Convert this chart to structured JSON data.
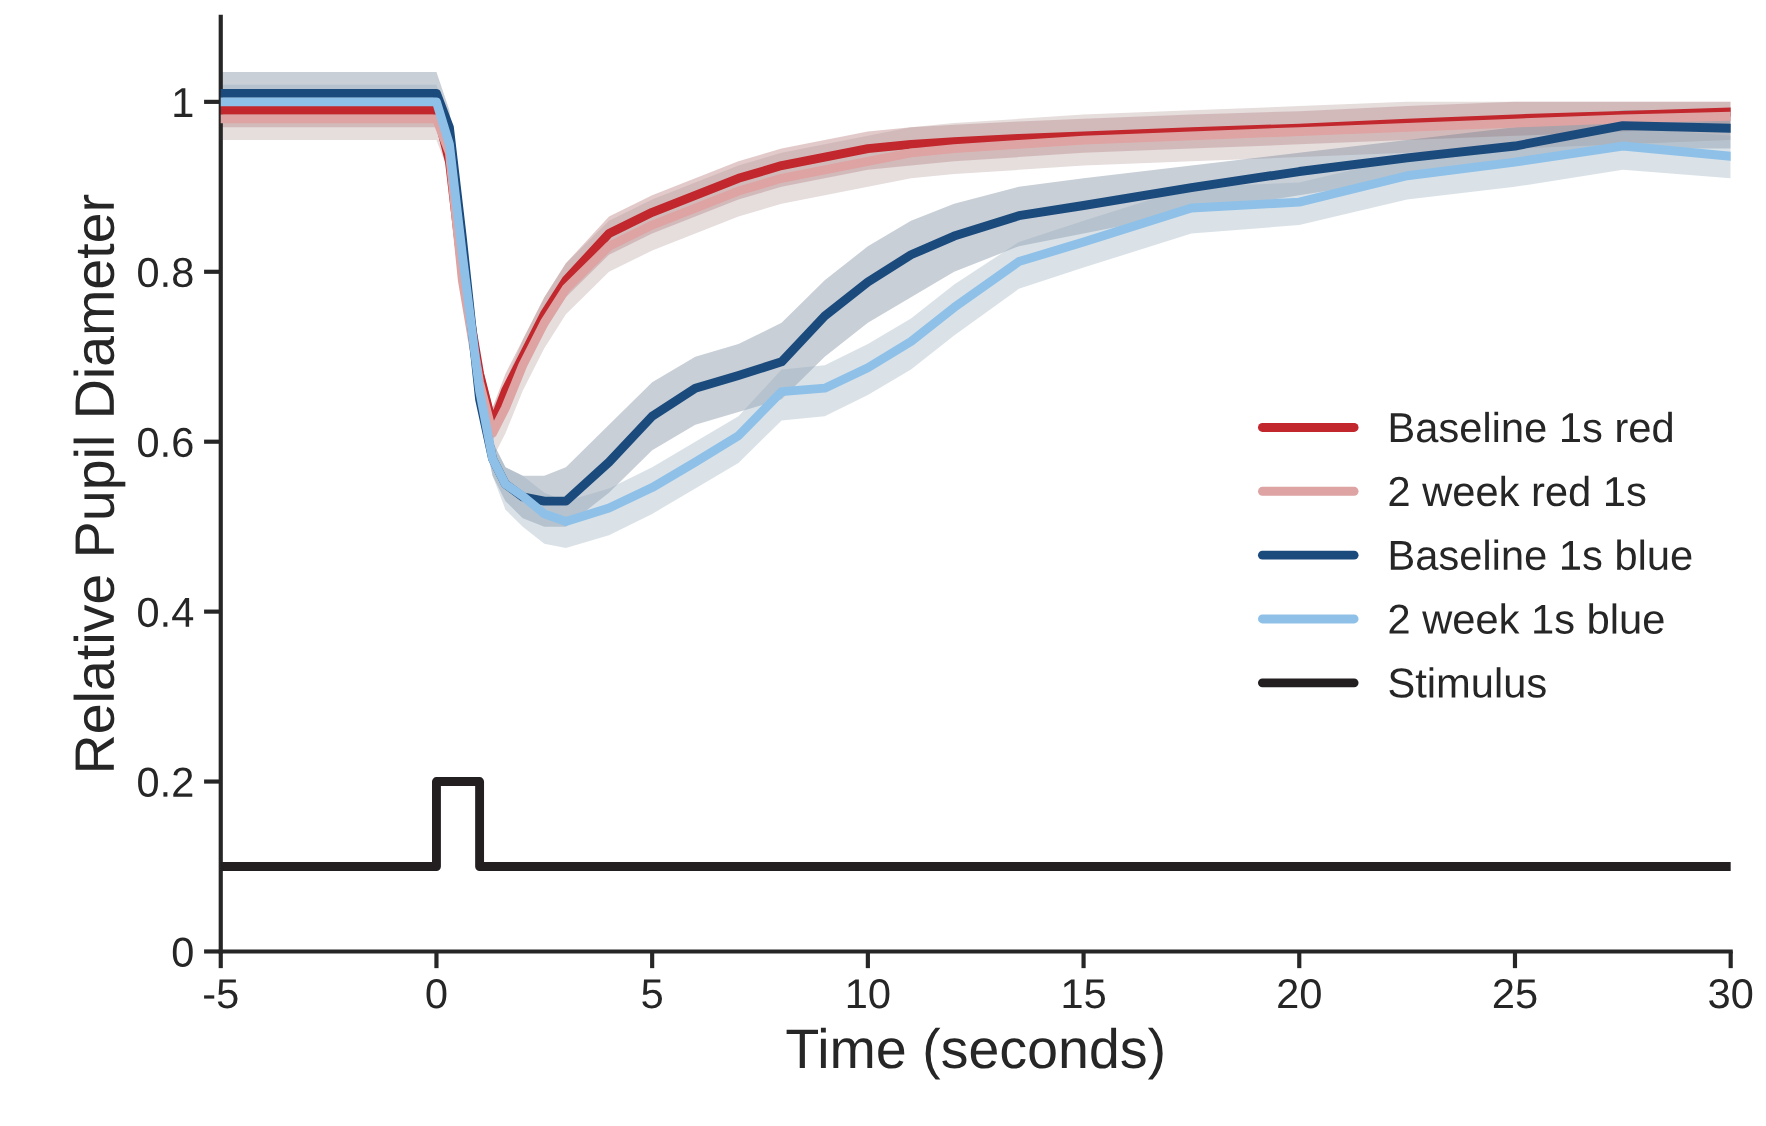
{
  "chart_data": {
    "type": "line",
    "xlabel": "Time (seconds)",
    "ylabel": "Relative Pupil Diameter",
    "x": [
      -5,
      -2.5,
      0,
      0.3,
      0.6,
      1,
      1.3,
      1.6,
      2,
      2.5,
      3,
      4,
      5,
      6,
      7,
      8,
      9,
      10,
      11,
      12,
      13.5,
      15,
      17.5,
      20,
      22.5,
      25,
      27.5,
      30
    ],
    "xlim": [
      -5,
      30
    ],
    "xticks": [
      -5,
      0,
      5,
      10,
      15,
      20,
      25,
      30
    ],
    "ylim": [
      0,
      1.1
    ],
    "yticks": [
      0,
      0.2,
      0.4,
      0.6,
      0.8,
      1
    ],
    "grid": false,
    "legend": "right",
    "marker": "none",
    "line_style": "solid",
    "series": [
      {
        "name": "Baseline 1s red",
        "color": "#c1272d",
        "values": [
          0.99,
          0.99,
          0.99,
          0.93,
          0.8,
          0.68,
          0.62,
          0.66,
          0.7,
          0.75,
          0.79,
          0.845,
          0.87,
          0.89,
          0.91,
          0.925,
          0.935,
          0.945,
          0.95,
          0.953,
          0.957,
          0.96,
          0.965,
          0.969,
          0.975,
          0.98,
          0.984,
          0.988
        ],
        "lower": [
          0.97,
          0.97,
          0.97,
          0.91,
          0.78,
          0.66,
          0.6,
          0.64,
          0.68,
          0.73,
          0.77,
          0.82,
          0.845,
          0.865,
          0.885,
          0.9,
          0.91,
          0.92,
          0.925,
          0.93,
          0.935,
          0.94,
          0.945,
          0.95,
          0.955,
          0.96,
          0.965,
          0.97
        ],
        "upper": [
          1.01,
          1.01,
          1.01,
          0.95,
          0.82,
          0.7,
          0.64,
          0.68,
          0.72,
          0.77,
          0.81,
          0.865,
          0.89,
          0.91,
          0.93,
          0.945,
          0.955,
          0.965,
          0.97,
          0.973,
          0.977,
          0.98,
          0.985,
          0.989,
          0.995,
          1.0,
          1.0,
          1.0
        ]
      },
      {
        "name": "2 week red 1s",
        "color": "#dea3a3",
        "values": [
          0.98,
          0.98,
          0.98,
          0.94,
          0.79,
          0.67,
          0.61,
          0.64,
          0.69,
          0.74,
          0.78,
          0.83,
          0.855,
          0.875,
          0.895,
          0.91,
          0.92,
          0.93,
          0.94,
          0.945,
          0.95,
          0.955,
          0.96,
          0.965,
          0.97,
          0.975,
          0.98,
          0.983
        ],
        "lower": [
          0.955,
          0.955,
          0.955,
          0.915,
          0.765,
          0.64,
          0.58,
          0.61,
          0.66,
          0.71,
          0.75,
          0.8,
          0.825,
          0.845,
          0.865,
          0.88,
          0.89,
          0.9,
          0.91,
          0.915,
          0.92,
          0.925,
          0.93,
          0.935,
          0.94,
          0.945,
          0.95,
          0.955
        ],
        "upper": [
          1.005,
          1.005,
          1.005,
          0.965,
          0.815,
          0.7,
          0.64,
          0.67,
          0.72,
          0.77,
          0.81,
          0.86,
          0.885,
          0.905,
          0.925,
          0.94,
          0.95,
          0.96,
          0.97,
          0.975,
          0.98,
          0.985,
          0.99,
          0.995,
          1.0,
          1.0,
          1.0,
          1.0
        ]
      },
      {
        "name": "Baseline 1s blue",
        "color": "#1b4a7d",
        "values": [
          1.01,
          1.01,
          1.01,
          0.97,
          0.84,
          0.65,
          0.58,
          0.55,
          0.535,
          0.53,
          0.53,
          0.576,
          0.63,
          0.663,
          0.678,
          0.694,
          0.748,
          0.788,
          0.82,
          0.842,
          0.866,
          0.878,
          0.899,
          0.918,
          0.934,
          0.948,
          0.972,
          0.969
        ],
        "lower": [
          0.99,
          0.99,
          0.99,
          0.95,
          0.82,
          0.63,
          0.56,
          0.53,
          0.51,
          0.5,
          0.5,
          0.54,
          0.59,
          0.62,
          0.635,
          0.65,
          0.7,
          0.74,
          0.77,
          0.8,
          0.83,
          0.845,
          0.87,
          0.89,
          0.91,
          0.925,
          0.945,
          0.945
        ],
        "upper": [
          1.035,
          1.035,
          1.035,
          0.99,
          0.86,
          0.67,
          0.6,
          0.57,
          0.56,
          0.56,
          0.57,
          0.62,
          0.67,
          0.7,
          0.715,
          0.74,
          0.79,
          0.83,
          0.86,
          0.88,
          0.9,
          0.91,
          0.925,
          0.94,
          0.955,
          0.97,
          0.99,
          0.99
        ]
      },
      {
        "name": "2 week 1s blue",
        "color": "#8fc1e8",
        "values": [
          1.0,
          1.0,
          1.0,
          0.95,
          0.82,
          0.66,
          0.58,
          0.55,
          0.536,
          0.515,
          0.506,
          0.522,
          0.546,
          0.576,
          0.607,
          0.659,
          0.663,
          0.687,
          0.718,
          0.758,
          0.812,
          0.835,
          0.875,
          0.882,
          0.913,
          0.929,
          0.948,
          0.936
        ],
        "lower": [
          0.98,
          0.98,
          0.98,
          0.925,
          0.795,
          0.64,
          0.56,
          0.52,
          0.5,
          0.48,
          0.475,
          0.49,
          0.515,
          0.545,
          0.575,
          0.625,
          0.63,
          0.655,
          0.685,
          0.725,
          0.78,
          0.805,
          0.845,
          0.855,
          0.885,
          0.9,
          0.92,
          0.91
        ],
        "upper": [
          1.02,
          1.02,
          1.02,
          0.975,
          0.845,
          0.68,
          0.6,
          0.57,
          0.56,
          0.54,
          0.53,
          0.545,
          0.57,
          0.6,
          0.63,
          0.685,
          0.69,
          0.715,
          0.745,
          0.785,
          0.835,
          0.86,
          0.9,
          0.905,
          0.935,
          0.95,
          0.97,
          0.96
        ]
      },
      {
        "name": "Stimulus",
        "color": "#231f20",
        "x": [
          -5,
          0,
          0,
          1,
          1,
          30
        ],
        "values": [
          0.1,
          0.1,
          0.2,
          0.2,
          0.1,
          0.1
        ]
      }
    ]
  }
}
